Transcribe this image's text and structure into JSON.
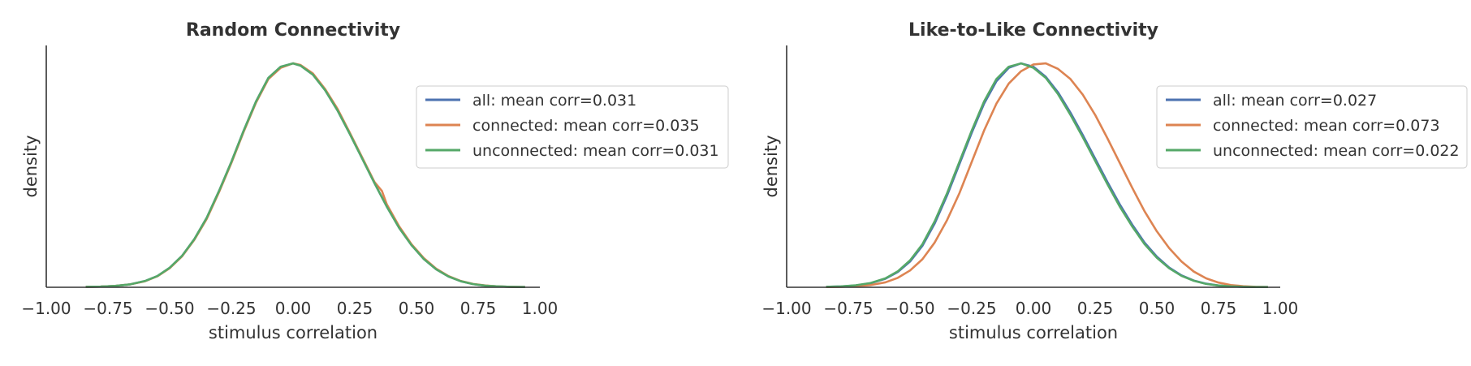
{
  "chart_data": [
    {
      "type": "line",
      "title": "Random Connectivity",
      "xlabel": "stimulus correlation",
      "ylabel": "density",
      "xlim": [
        -1.0,
        1.0
      ],
      "ylim": [
        0,
        1.08
      ],
      "xticks": [
        -1.0,
        -0.75,
        -0.5,
        -0.25,
        0.0,
        0.25,
        0.5,
        0.75,
        1.0
      ],
      "xtick_labels": [
        "−1.00",
        "−0.75",
        "−0.50",
        "−0.25",
        "0.00",
        "0.25",
        "0.50",
        "0.75",
        "1.00"
      ],
      "grid": false,
      "legend_position": "right",
      "series": [
        {
          "name": "all: mean corr=0.031",
          "color": "#4c72b0",
          "x": [
            -0.84,
            -0.78,
            -0.72,
            -0.66,
            -0.6,
            -0.55,
            -0.5,
            -0.45,
            -0.4,
            -0.35,
            -0.3,
            -0.25,
            -0.2,
            -0.15,
            -0.1,
            -0.05,
            0.0,
            0.03,
            0.08,
            0.13,
            0.18,
            0.23,
            0.28,
            0.33,
            0.38,
            0.43,
            0.48,
            0.53,
            0.58,
            0.63,
            0.68,
            0.73,
            0.78,
            0.83,
            0.88,
            0.94
          ],
          "y": [
            0.002,
            0.003,
            0.006,
            0.013,
            0.028,
            0.05,
            0.087,
            0.14,
            0.215,
            0.31,
            0.43,
            0.56,
            0.7,
            0.83,
            0.935,
            0.985,
            1.0,
            0.99,
            0.95,
            0.88,
            0.79,
            0.685,
            0.575,
            0.465,
            0.36,
            0.265,
            0.188,
            0.126,
            0.08,
            0.048,
            0.027,
            0.014,
            0.007,
            0.004,
            0.002,
            0.001
          ]
        },
        {
          "name": "connected: mean corr=0.035",
          "color": "#dd8452",
          "x": [
            -0.84,
            -0.78,
            -0.72,
            -0.66,
            -0.6,
            -0.55,
            -0.5,
            -0.45,
            -0.4,
            -0.35,
            -0.3,
            -0.25,
            -0.2,
            -0.15,
            -0.1,
            -0.05,
            0.0,
            0.03,
            0.08,
            0.13,
            0.18,
            0.23,
            0.28,
            0.33,
            0.36,
            0.38,
            0.43,
            0.48,
            0.53,
            0.58,
            0.63,
            0.68,
            0.73,
            0.78,
            0.83,
            0.88,
            0.94
          ],
          "y": [
            0.002,
            0.003,
            0.006,
            0.013,
            0.027,
            0.049,
            0.085,
            0.138,
            0.212,
            0.305,
            0.425,
            0.555,
            0.695,
            0.825,
            0.93,
            0.98,
            1.0,
            0.993,
            0.955,
            0.885,
            0.797,
            0.69,
            0.58,
            0.47,
            0.43,
            0.37,
            0.272,
            0.192,
            0.13,
            0.083,
            0.05,
            0.028,
            0.015,
            0.008,
            0.004,
            0.002,
            0.001
          ]
        },
        {
          "name": "unconnected: mean corr=0.031",
          "color": "#55a868",
          "x": [
            -0.84,
            -0.78,
            -0.72,
            -0.66,
            -0.6,
            -0.55,
            -0.5,
            -0.45,
            -0.4,
            -0.35,
            -0.3,
            -0.25,
            -0.2,
            -0.15,
            -0.1,
            -0.05,
            0.0,
            0.03,
            0.08,
            0.13,
            0.18,
            0.23,
            0.28,
            0.33,
            0.38,
            0.43,
            0.48,
            0.53,
            0.58,
            0.63,
            0.68,
            0.73,
            0.78,
            0.83,
            0.88,
            0.94
          ],
          "y": [
            0.002,
            0.003,
            0.006,
            0.013,
            0.028,
            0.05,
            0.087,
            0.14,
            0.215,
            0.31,
            0.43,
            0.56,
            0.7,
            0.83,
            0.935,
            0.985,
            1.0,
            0.99,
            0.95,
            0.88,
            0.79,
            0.685,
            0.575,
            0.465,
            0.36,
            0.265,
            0.188,
            0.126,
            0.08,
            0.048,
            0.027,
            0.014,
            0.007,
            0.004,
            0.002,
            0.001
          ]
        }
      ]
    },
    {
      "type": "line",
      "title": "Like-to-Like Connectivity",
      "xlabel": "stimulus correlation",
      "ylabel": "density",
      "xlim": [
        -1.0,
        1.0
      ],
      "ylim": [
        0,
        1.08
      ],
      "xticks": [
        -1.0,
        -0.75,
        -0.5,
        -0.25,
        0.0,
        0.25,
        0.5,
        0.75,
        1.0
      ],
      "xtick_labels": [
        "−1.00",
        "−0.75",
        "−0.50",
        "−0.25",
        "0.00",
        "0.25",
        "0.50",
        "0.75",
        "1.00"
      ],
      "grid": false,
      "legend_position": "right",
      "series": [
        {
          "name": "all: mean corr=0.027",
          "color": "#4c72b0",
          "x": [
            -0.84,
            -0.78,
            -0.72,
            -0.66,
            -0.6,
            -0.55,
            -0.5,
            -0.45,
            -0.4,
            -0.35,
            -0.3,
            -0.25,
            -0.2,
            -0.15,
            -0.1,
            -0.05,
            0.0,
            0.05,
            0.1,
            0.15,
            0.2,
            0.25,
            0.3,
            0.35,
            0.4,
            0.45,
            0.5,
            0.55,
            0.6,
            0.65,
            0.7,
            0.75,
            0.8,
            0.85,
            0.9,
            0.95
          ],
          "y": [
            0.002,
            0.004,
            0.008,
            0.018,
            0.038,
            0.068,
            0.115,
            0.185,
            0.285,
            0.41,
            0.55,
            0.69,
            0.82,
            0.92,
            0.98,
            1.0,
            0.985,
            0.94,
            0.87,
            0.78,
            0.68,
            0.575,
            0.47,
            0.37,
            0.28,
            0.2,
            0.137,
            0.088,
            0.053,
            0.03,
            0.016,
            0.008,
            0.004,
            0.002,
            0.001,
            0.001
          ]
        },
        {
          "name": "connected: mean corr=0.073",
          "color": "#dd8452",
          "x": [
            -0.84,
            -0.78,
            -0.72,
            -0.66,
            -0.6,
            -0.55,
            -0.5,
            -0.45,
            -0.4,
            -0.35,
            -0.3,
            -0.25,
            -0.2,
            -0.15,
            -0.1,
            -0.05,
            0.0,
            0.05,
            0.1,
            0.15,
            0.2,
            0.25,
            0.3,
            0.35,
            0.4,
            0.45,
            0.5,
            0.55,
            0.6,
            0.65,
            0.7,
            0.75,
            0.8,
            0.85,
            0.9,
            0.95
          ],
          "y": [
            0.001,
            0.002,
            0.005,
            0.01,
            0.022,
            0.042,
            0.075,
            0.125,
            0.2,
            0.3,
            0.42,
            0.56,
            0.7,
            0.82,
            0.91,
            0.965,
            0.995,
            1.0,
            0.975,
            0.93,
            0.86,
            0.77,
            0.665,
            0.555,
            0.445,
            0.34,
            0.25,
            0.175,
            0.115,
            0.07,
            0.04,
            0.021,
            0.01,
            0.005,
            0.002,
            0.001
          ]
        },
        {
          "name": "unconnected: mean corr=0.022",
          "color": "#55a868",
          "x": [
            -0.84,
            -0.78,
            -0.72,
            -0.66,
            -0.6,
            -0.55,
            -0.5,
            -0.45,
            -0.4,
            -0.35,
            -0.3,
            -0.25,
            -0.2,
            -0.15,
            -0.1,
            -0.05,
            0.0,
            0.05,
            0.1,
            0.15,
            0.2,
            0.25,
            0.3,
            0.35,
            0.4,
            0.45,
            0.5,
            0.55,
            0.6,
            0.65,
            0.7,
            0.75,
            0.8,
            0.85,
            0.9,
            0.95
          ],
          "y": [
            0.002,
            0.004,
            0.009,
            0.019,
            0.04,
            0.071,
            0.12,
            0.192,
            0.295,
            0.42,
            0.56,
            0.7,
            0.83,
            0.93,
            0.985,
            1.0,
            0.98,
            0.935,
            0.862,
            0.77,
            0.67,
            0.565,
            0.46,
            0.36,
            0.272,
            0.193,
            0.132,
            0.085,
            0.051,
            0.029,
            0.015,
            0.008,
            0.004,
            0.002,
            0.001,
            0.001
          ]
        }
      ]
    }
  ]
}
